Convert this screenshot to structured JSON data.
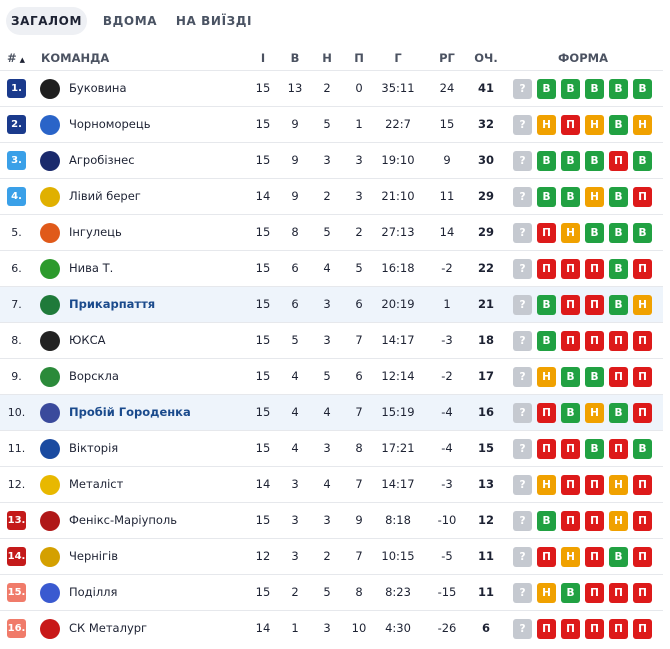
{
  "tabs": [
    {
      "label": "ЗАГАЛОМ",
      "active": true
    },
    {
      "label": "ВДОМА",
      "active": false
    },
    {
      "label": "НА ВИЇЗДІ",
      "active": false
    }
  ],
  "header": {
    "pos": "#",
    "sort_arrow": "▲",
    "team": "КОМАНДА",
    "games": "І",
    "wins": "В",
    "draws": "Н",
    "losses": "П",
    "goals": "Г",
    "goal_diff": "РГ",
    "points": "ОЧ.",
    "form": "ФОРМА"
  },
  "colors": {
    "promotion": "#1a3a8c",
    "playoff": "#3aa0e8",
    "relegation_playoff": "#f07b6a",
    "relegation": "#c41a1a",
    "win": "#21a142",
    "loss": "#dd1a1a",
    "draw": "#f0a100",
    "unknown": "#c5c9d0"
  },
  "rows": [
    {
      "pos": "1.",
      "zone": "promotion",
      "team": "Буковина",
      "logo": "bukovyna-logo",
      "games": "15",
      "wins": "13",
      "draws": "2",
      "losses": "0",
      "goals": "35:11",
      "diff": "24",
      "pts": "41",
      "form": [
        "?",
        "В",
        "В",
        "В",
        "В",
        "В"
      ],
      "highlight": false
    },
    {
      "pos": "2.",
      "zone": "promotion",
      "team": "Чорноморець",
      "logo": "chornomorets-logo",
      "games": "15",
      "wins": "9",
      "draws": "5",
      "losses": "1",
      "goals": "22:7",
      "diff": "15",
      "pts": "32",
      "form": [
        "?",
        "Н",
        "П",
        "Н",
        "В",
        "Н"
      ],
      "highlight": false
    },
    {
      "pos": "3.",
      "zone": "playoff",
      "team": "Агробізнес",
      "logo": "agrobiznes-logo",
      "games": "15",
      "wins": "9",
      "draws": "3",
      "losses": "3",
      "goals": "19:10",
      "diff": "9",
      "pts": "30",
      "form": [
        "?",
        "В",
        "В",
        "В",
        "П",
        "В"
      ],
      "highlight": false
    },
    {
      "pos": "4.",
      "zone": "playoff",
      "team": "Лівий берег",
      "logo": "livyi-bereh-logo",
      "games": "14",
      "wins": "9",
      "draws": "2",
      "losses": "3",
      "goals": "21:10",
      "diff": "11",
      "pts": "29",
      "form": [
        "?",
        "В",
        "В",
        "Н",
        "В",
        "П"
      ],
      "highlight": false
    },
    {
      "pos": "5.",
      "zone": "none",
      "team": "Інгулець",
      "logo": "inhulets-logo",
      "games": "15",
      "wins": "8",
      "draws": "5",
      "losses": "2",
      "goals": "27:13",
      "diff": "14",
      "pts": "29",
      "form": [
        "?",
        "П",
        "Н",
        "В",
        "В",
        "В"
      ],
      "highlight": false
    },
    {
      "pos": "6.",
      "zone": "none",
      "team": "Нива Т.",
      "logo": "nyva-logo",
      "games": "15",
      "wins": "6",
      "draws": "4",
      "losses": "5",
      "goals": "16:18",
      "diff": "-2",
      "pts": "22",
      "form": [
        "?",
        "П",
        "П",
        "П",
        "В",
        "П"
      ],
      "highlight": false
    },
    {
      "pos": "7.",
      "zone": "none",
      "team": "Прикарпаття",
      "logo": "prykarpattia-logo",
      "games": "15",
      "wins": "6",
      "draws": "3",
      "losses": "6",
      "goals": "20:19",
      "diff": "1",
      "pts": "21",
      "form": [
        "?",
        "В",
        "П",
        "П",
        "В",
        "Н"
      ],
      "highlight": true
    },
    {
      "pos": "8.",
      "zone": "none",
      "team": "ЮКСА",
      "logo": "yuksa-logo",
      "games": "15",
      "wins": "5",
      "draws": "3",
      "losses": "7",
      "goals": "14:17",
      "diff": "-3",
      "pts": "18",
      "form": [
        "?",
        "В",
        "П",
        "П",
        "П",
        "П"
      ],
      "highlight": false
    },
    {
      "pos": "9.",
      "zone": "none",
      "team": "Ворскла",
      "logo": "vorskla-logo",
      "games": "15",
      "wins": "4",
      "draws": "5",
      "losses": "6",
      "goals": "12:14",
      "diff": "-2",
      "pts": "17",
      "form": [
        "?",
        "Н",
        "В",
        "В",
        "П",
        "П"
      ],
      "highlight": false
    },
    {
      "pos": "10.",
      "zone": "none",
      "team": "Пробій Городенка",
      "logo": "probii-logo",
      "games": "15",
      "wins": "4",
      "draws": "4",
      "losses": "7",
      "goals": "15:19",
      "diff": "-4",
      "pts": "16",
      "form": [
        "?",
        "П",
        "В",
        "Н",
        "В",
        "П"
      ],
      "highlight": true
    },
    {
      "pos": "11.",
      "zone": "none",
      "team": "Вікторія",
      "logo": "viktoriia-logo",
      "games": "15",
      "wins": "4",
      "draws": "3",
      "losses": "8",
      "goals": "17:21",
      "diff": "-4",
      "pts": "15",
      "form": [
        "?",
        "П",
        "П",
        "В",
        "П",
        "В"
      ],
      "highlight": false
    },
    {
      "pos": "12.",
      "zone": "none",
      "team": "Металіст",
      "logo": "metalist-logo",
      "games": "14",
      "wins": "3",
      "draws": "4",
      "losses": "7",
      "goals": "14:17",
      "diff": "-3",
      "pts": "13",
      "form": [
        "?",
        "Н",
        "П",
        "П",
        "Н",
        "П"
      ],
      "highlight": false
    },
    {
      "pos": "13.",
      "zone": "relegation",
      "team": "Фенікс-Маріуполь",
      "logo": "feniks-logo",
      "games": "15",
      "wins": "3",
      "draws": "3",
      "losses": "9",
      "goals": "8:18",
      "diff": "-10",
      "pts": "12",
      "form": [
        "?",
        "В",
        "П",
        "П",
        "Н",
        "П"
      ],
      "highlight": false
    },
    {
      "pos": "14.",
      "zone": "relegation",
      "team": "Чернігів",
      "logo": "chernihiv-logo",
      "games": "12",
      "wins": "3",
      "draws": "2",
      "losses": "7",
      "goals": "10:15",
      "diff": "-5",
      "pts": "11",
      "form": [
        "?",
        "П",
        "Н",
        "П",
        "В",
        "П"
      ],
      "highlight": false
    },
    {
      "pos": "15.",
      "zone": "relegation_playoff",
      "team": "Поділля",
      "logo": "podillia-logo",
      "games": "15",
      "wins": "2",
      "draws": "5",
      "losses": "8",
      "goals": "8:23",
      "diff": "-15",
      "pts": "11",
      "form": [
        "?",
        "Н",
        "В",
        "П",
        "П",
        "П"
      ],
      "highlight": false
    },
    {
      "pos": "16.",
      "zone": "relegation_playoff",
      "team": "СК Металург",
      "logo": "metalurh-logo",
      "games": "14",
      "wins": "1",
      "draws": "3",
      "losses": "10",
      "goals": "4:30",
      "diff": "-26",
      "pts": "6",
      "form": [
        "?",
        "П",
        "П",
        "П",
        "П",
        "П"
      ],
      "highlight": false
    }
  ]
}
